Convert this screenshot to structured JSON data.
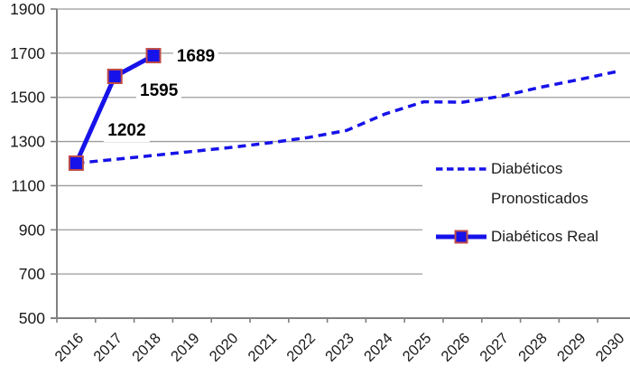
{
  "chart_data": {
    "type": "line",
    "title": "",
    "categories": [
      "2016",
      "2017",
      "2018",
      "2019",
      "2020",
      "2021",
      "2022",
      "2023",
      "2024",
      "2025",
      "2026",
      "2027",
      "2028",
      "2029",
      "2030"
    ],
    "series": [
      {
        "name": "Diabéticos Pronosticados",
        "legend_lines": [
          "Diabéticos",
          "Pronosticados"
        ],
        "style": "dashed",
        "marker": "none",
        "values": [
          1202,
          1219,
          1237,
          1255,
          1273,
          1294,
          1318,
          1350,
          1425,
          1480,
          1478,
          1505,
          1545,
          1580,
          1617
        ]
      },
      {
        "name": "Diabéticos Real",
        "legend_lines": [
          "Diabéticos Real"
        ],
        "style": "solid",
        "marker": "square",
        "values": [
          1202,
          1595,
          1689
        ],
        "data_labels": [
          "1202",
          "1595",
          "1689"
        ]
      }
    ],
    "ylim": [
      500,
      1900
    ],
    "ytick_interval": 200,
    "yticks": [
      "1900",
      "1700",
      "1500",
      "1300",
      "1100",
      "900",
      "700",
      "500"
    ],
    "grid": "horizontal",
    "legend_position": "inside-right"
  },
  "colors": {
    "series_blue": "#1612E9",
    "marker_border": "#BE4B48",
    "gridline": "#9B9B9B",
    "axis": "#808080",
    "text": "#1A1A1A",
    "background": "#FFFFFF"
  }
}
